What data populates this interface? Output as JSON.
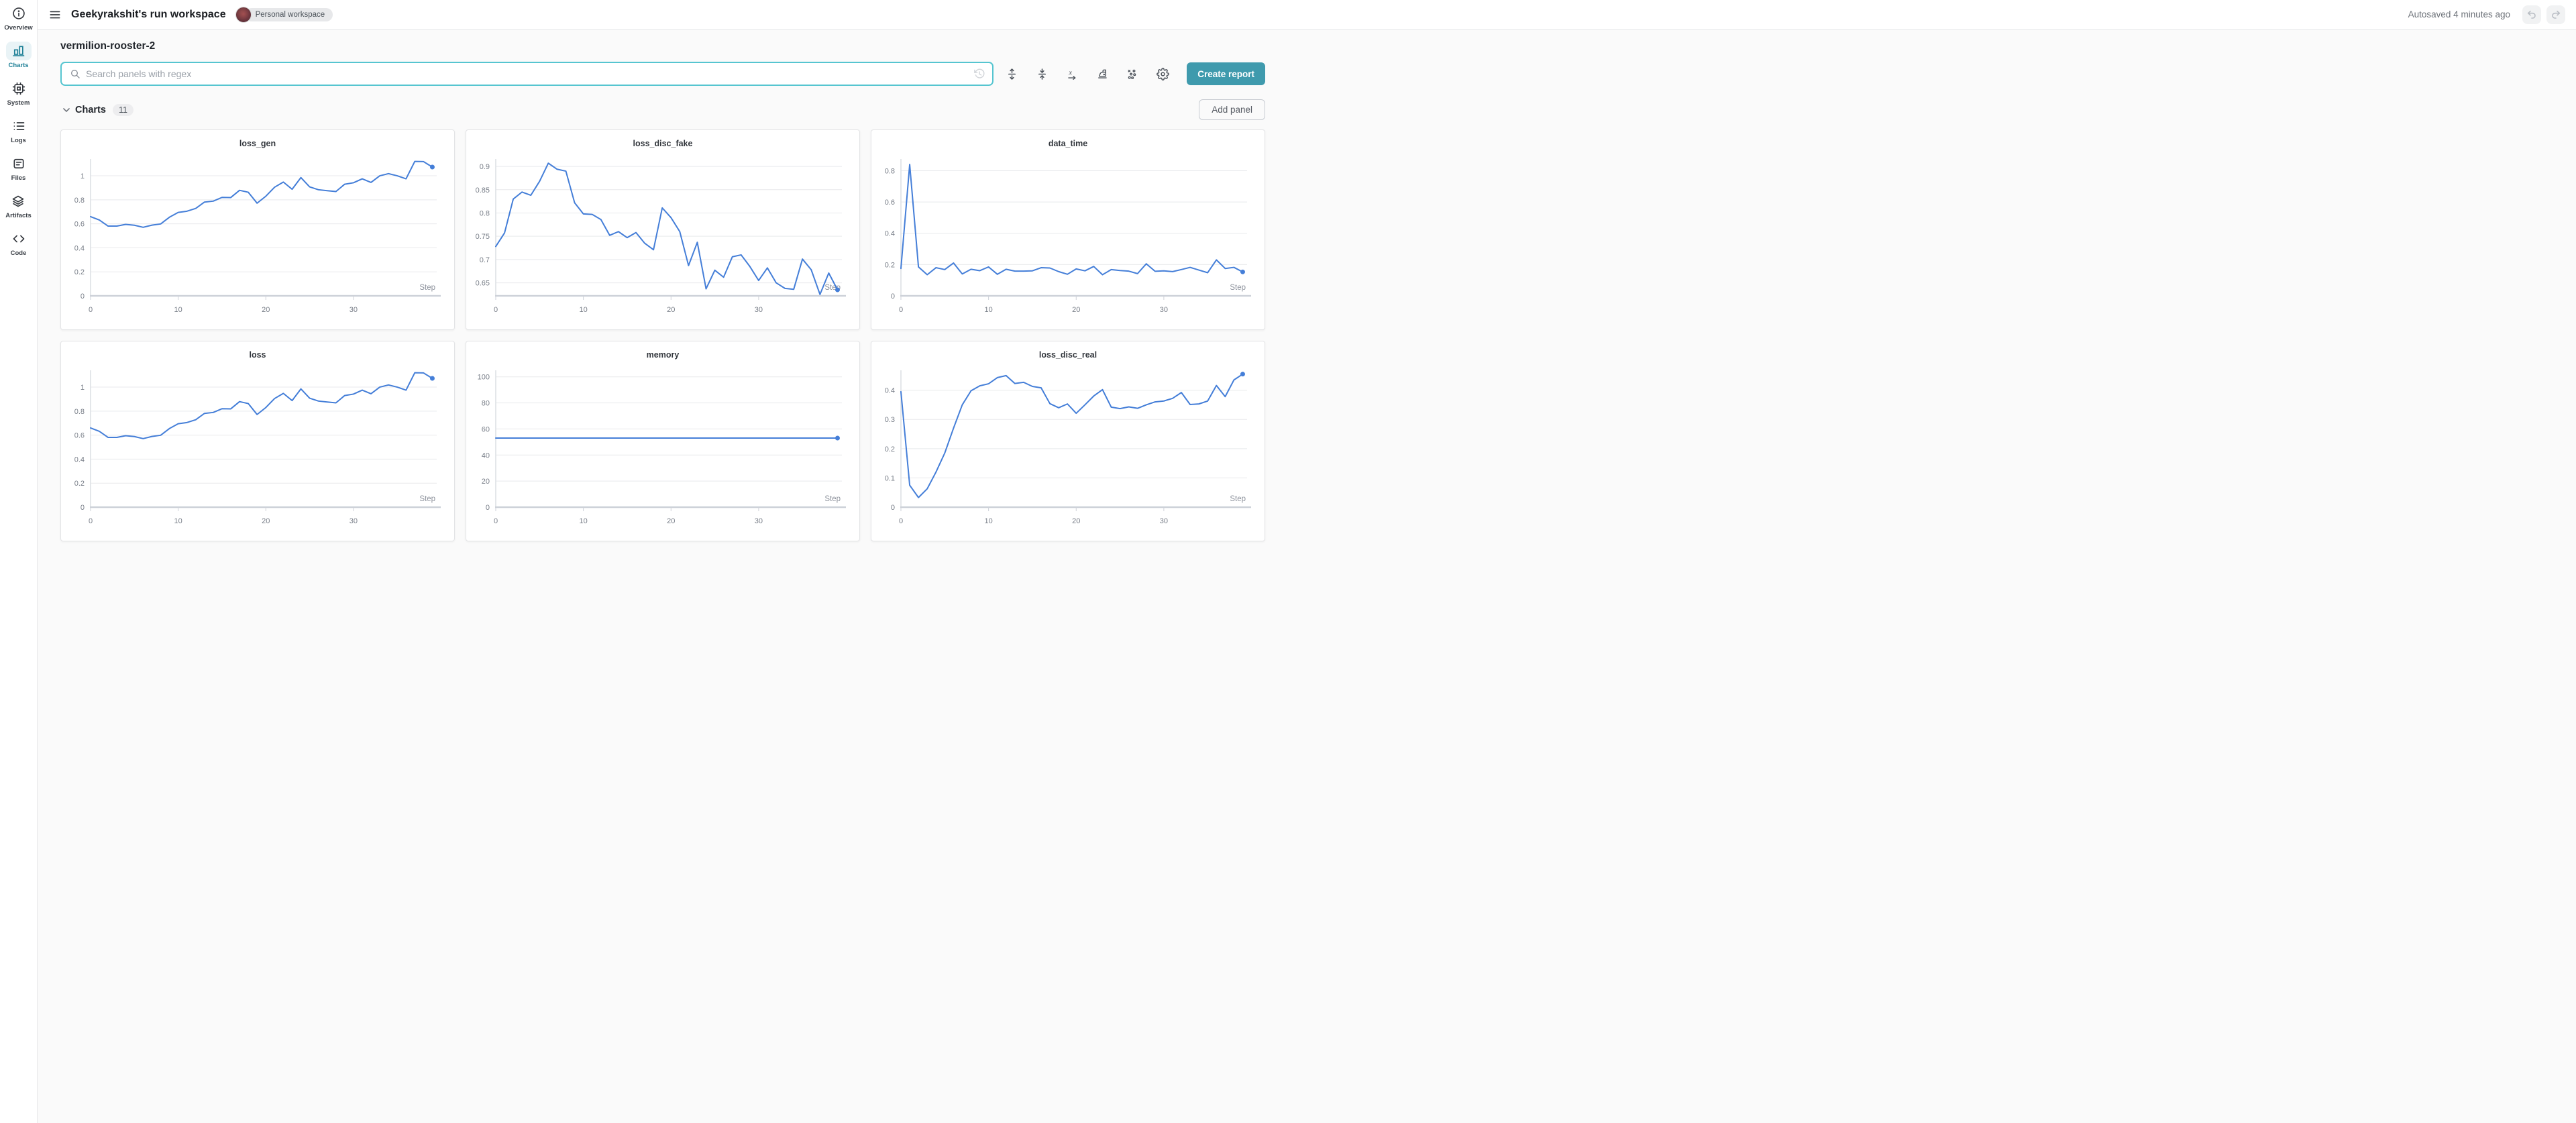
{
  "header": {
    "title": "Geekyrakshit's run workspace",
    "badge": "Personal workspace",
    "autosave": "Autosaved 4 minutes ago"
  },
  "sidebar": {
    "items": [
      {
        "label": "Overview",
        "icon": "info-icon",
        "active": false
      },
      {
        "label": "Charts",
        "icon": "bar-chart-icon",
        "active": true
      },
      {
        "label": "System",
        "icon": "cpu-icon",
        "active": false
      },
      {
        "label": "Logs",
        "icon": "list-icon",
        "active": false
      },
      {
        "label": "Files",
        "icon": "document-icon",
        "active": false
      },
      {
        "label": "Artifacts",
        "icon": "layers-icon",
        "active": false
      },
      {
        "label": "Code",
        "icon": "code-icon",
        "active": false
      }
    ]
  },
  "run": {
    "title": "vermilion-rooster-2"
  },
  "search": {
    "placeholder": "Search panels with regex",
    "value": ""
  },
  "toolbar": {
    "create_report_label": "Create report",
    "icons": [
      "regex-history",
      "expand-panels",
      "collapse-panels",
      "x-axis-settings",
      "smoothing-settings",
      "outliers-settings",
      "workspace-settings"
    ]
  },
  "section": {
    "title": "Charts",
    "count": "11",
    "add_panel_label": "Add panel"
  },
  "colors": {
    "line": "#447ed8",
    "accent": "#3f9aad",
    "sidebar_active": "#1d7f96",
    "search_border": "#56c5d0"
  },
  "chart_data": [
    {
      "type": "line",
      "title": "loss_gen",
      "xlabel": "Step",
      "x_ticks": [
        0,
        10,
        20,
        30
      ],
      "y_ticks": [
        0,
        0.2,
        0.4,
        0.6,
        0.8,
        1
      ],
      "xlim": [
        0,
        39.5
      ],
      "ylim": [
        0,
        1.14
      ],
      "grid": true,
      "legend": "none",
      "values": [
        0.66,
        0.632,
        0.581,
        0.581,
        0.595,
        0.588,
        0.571,
        0.589,
        0.599,
        0.655,
        0.695,
        0.705,
        0.728,
        0.781,
        0.789,
        0.82,
        0.819,
        0.879,
        0.863,
        0.772,
        0.83,
        0.905,
        0.948,
        0.888,
        0.985,
        0.908,
        0.884,
        0.876,
        0.869,
        0.93,
        0.942,
        0.975,
        0.945,
        1.0,
        1.018,
        1.0,
        0.975,
        1.12,
        1.118,
        1.073
      ]
    },
    {
      "type": "line",
      "title": "loss_disc_fake",
      "xlabel": "Step",
      "x_ticks": [
        0,
        10,
        20,
        30
      ],
      "y_ticks": [
        0.65,
        0.7,
        0.75,
        0.8,
        0.85,
        0.9
      ],
      "xlim": [
        0,
        39.5
      ],
      "ylim": [
        0.622,
        0.916
      ],
      "grid": true,
      "legend": "none",
      "values": [
        0.728,
        0.757,
        0.83,
        0.845,
        0.838,
        0.868,
        0.907,
        0.894,
        0.89,
        0.822,
        0.798,
        0.797,
        0.786,
        0.752,
        0.76,
        0.747,
        0.758,
        0.735,
        0.721,
        0.811,
        0.79,
        0.76,
        0.687,
        0.737,
        0.637,
        0.677,
        0.662,
        0.706,
        0.71,
        0.685,
        0.655,
        0.682,
        0.65,
        0.638,
        0.636,
        0.701,
        0.678,
        0.625,
        0.671,
        0.635
      ]
    },
    {
      "type": "line",
      "title": "data_time",
      "xlabel": "Step",
      "x_ticks": [
        0,
        10,
        20,
        30
      ],
      "y_ticks": [
        0,
        0.2,
        0.4,
        0.6,
        0.8
      ],
      "xlim": [
        0,
        39.5
      ],
      "ylim": [
        0,
        0.875
      ],
      "grid": true,
      "legend": "none",
      "values": [
        0.175,
        0.84,
        0.185,
        0.135,
        0.18,
        0.168,
        0.21,
        0.14,
        0.17,
        0.161,
        0.185,
        0.138,
        0.17,
        0.158,
        0.158,
        0.16,
        0.18,
        0.178,
        0.155,
        0.138,
        0.172,
        0.16,
        0.188,
        0.135,
        0.168,
        0.162,
        0.158,
        0.142,
        0.205,
        0.157,
        0.16,
        0.155,
        0.168,
        0.182,
        0.165,
        0.148,
        0.23,
        0.175,
        0.182,
        0.153
      ]
    },
    {
      "type": "line",
      "title": "loss",
      "xlabel": "Step",
      "x_ticks": [
        0,
        10,
        20,
        30
      ],
      "y_ticks": [
        0,
        0.2,
        0.4,
        0.6,
        0.8,
        1
      ],
      "xlim": [
        0,
        39.5
      ],
      "ylim": [
        0,
        1.14
      ],
      "grid": true,
      "legend": "none",
      "values": [
        0.66,
        0.632,
        0.581,
        0.581,
        0.595,
        0.588,
        0.571,
        0.589,
        0.599,
        0.655,
        0.695,
        0.705,
        0.728,
        0.781,
        0.789,
        0.82,
        0.819,
        0.879,
        0.863,
        0.772,
        0.83,
        0.905,
        0.948,
        0.888,
        0.985,
        0.908,
        0.884,
        0.876,
        0.869,
        0.93,
        0.942,
        0.975,
        0.945,
        1.0,
        1.018,
        1.0,
        0.975,
        1.12,
        1.118,
        1.073
      ]
    },
    {
      "type": "line",
      "title": "memory",
      "xlabel": "Step",
      "x_ticks": [
        0,
        10,
        20,
        30
      ],
      "y_ticks": [
        0,
        20,
        40,
        60,
        80,
        100
      ],
      "xlim": [
        0,
        39.5
      ],
      "ylim": [
        0,
        105
      ],
      "grid": true,
      "legend": "none",
      "values": [
        53,
        53,
        53,
        53,
        53,
        53,
        53,
        53,
        53,
        53,
        53,
        53,
        53,
        53,
        53,
        53,
        53,
        53,
        53,
        53,
        53,
        53,
        53,
        53,
        53,
        53,
        53,
        53,
        53,
        53,
        53,
        53,
        53,
        53,
        53,
        53,
        53,
        53,
        53,
        53
      ]
    },
    {
      "type": "line",
      "title": "loss_disc_real",
      "xlabel": "Step",
      "x_ticks": [
        0,
        10,
        20,
        30
      ],
      "y_ticks": [
        0,
        0.1,
        0.2,
        0.3,
        0.4
      ],
      "xlim": [
        0,
        39.5
      ],
      "ylim": [
        0,
        0.468
      ],
      "grid": true,
      "legend": "none",
      "values": [
        0.395,
        0.075,
        0.033,
        0.063,
        0.12,
        0.185,
        0.27,
        0.35,
        0.398,
        0.415,
        0.422,
        0.443,
        0.45,
        0.423,
        0.427,
        0.413,
        0.408,
        0.354,
        0.34,
        0.353,
        0.321,
        0.35,
        0.38,
        0.402,
        0.342,
        0.337,
        0.343,
        0.338,
        0.35,
        0.36,
        0.363,
        0.372,
        0.392,
        0.351,
        0.353,
        0.363,
        0.416,
        0.378,
        0.435,
        0.455
      ]
    }
  ]
}
